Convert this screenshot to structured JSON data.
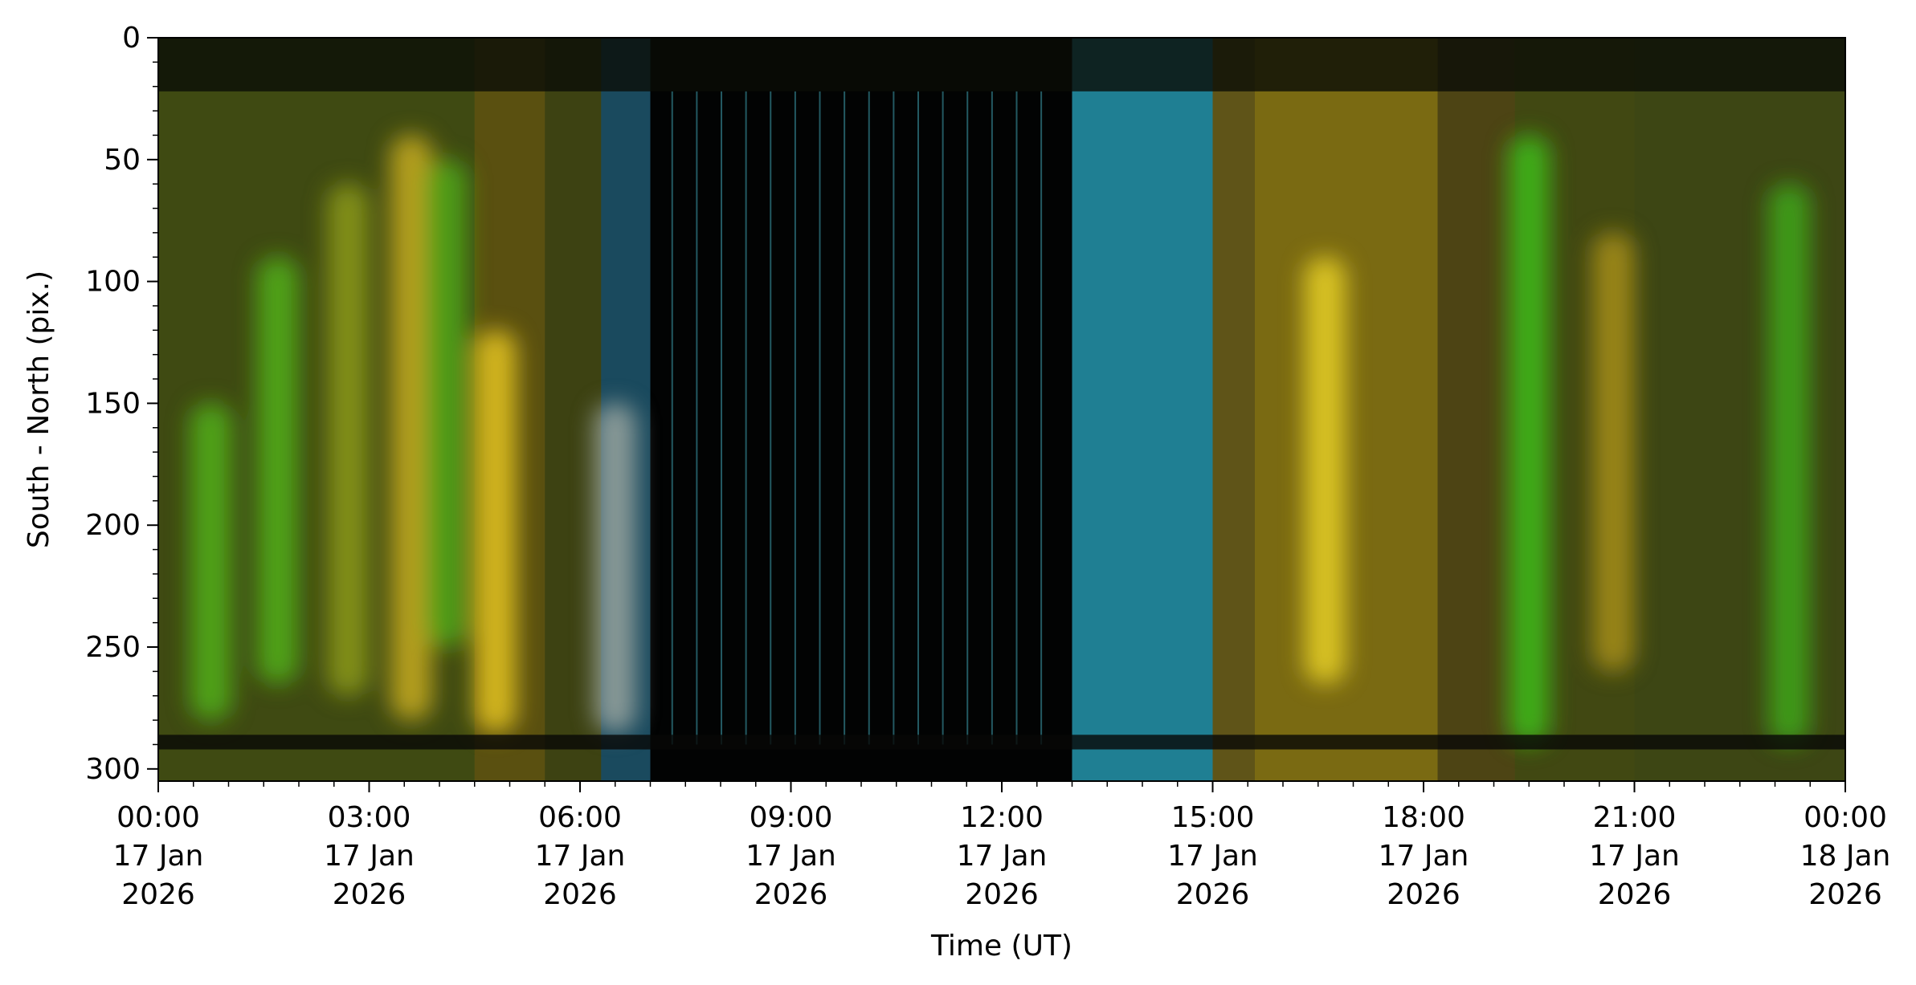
{
  "chart_data": {
    "type": "heatmap",
    "title": "",
    "xlabel": "Time (UT)",
    "ylabel": "South - North (pix.)",
    "x_range_hours": [
      0,
      24
    ],
    "y_range": [
      0,
      305
    ],
    "y_axis_inverted": true,
    "grid": false,
    "legend": "none",
    "x_ticks": [
      {
        "hours": 0,
        "lines": [
          "00:00",
          "17 Jan",
          "2026"
        ]
      },
      {
        "hours": 3,
        "lines": [
          "03:00",
          "17 Jan",
          "2026"
        ]
      },
      {
        "hours": 6,
        "lines": [
          "06:00",
          "17 Jan",
          "2026"
        ]
      },
      {
        "hours": 9,
        "lines": [
          "09:00",
          "17 Jan",
          "2026"
        ]
      },
      {
        "hours": 12,
        "lines": [
          "12:00",
          "17 Jan",
          "2026"
        ]
      },
      {
        "hours": 15,
        "lines": [
          "15:00",
          "17 Jan",
          "2026"
        ]
      },
      {
        "hours": 18,
        "lines": [
          "18:00",
          "17 Jan",
          "2026"
        ]
      },
      {
        "hours": 21,
        "lines": [
          "21:00",
          "17 Jan",
          "2026"
        ]
      },
      {
        "hours": 24,
        "lines": [
          "00:00",
          "18 Jan",
          "2026"
        ]
      }
    ],
    "y_ticks": [
      0,
      50,
      100,
      150,
      200,
      250,
      300
    ],
    "y_minor_step": 10,
    "x_minor_step_hours": 0.5,
    "regions": [
      {
        "start": 0.0,
        "end": 4.5,
        "color": "#3f4a12"
      },
      {
        "start": 4.5,
        "end": 5.5,
        "color": "#5a5010"
      },
      {
        "start": 5.5,
        "end": 6.3,
        "color": "#3d4212"
      },
      {
        "start": 6.3,
        "end": 7.0,
        "color": "#1a4a5e"
      },
      {
        "start": 7.0,
        "end": 13.0,
        "color": "#020303"
      },
      {
        "start": 13.0,
        "end": 15.0,
        "color": "#1f7f93"
      },
      {
        "start": 15.0,
        "end": 15.6,
        "color": "#5f5418"
      },
      {
        "start": 15.6,
        "end": 18.2,
        "color": "#7a6a12"
      },
      {
        "start": 18.2,
        "end": 19.3,
        "color": "#4d4414"
      },
      {
        "start": 19.3,
        "end": 21.0,
        "color": "#414812"
      },
      {
        "start": 21.0,
        "end": 24.0,
        "color": "#3d4614"
      }
    ],
    "auroral_features": [
      {
        "hours": 0.75,
        "y_top": 150,
        "y_bottom": 280,
        "color": "#52b01a"
      },
      {
        "hours": 1.7,
        "y_top": 90,
        "y_bottom": 265,
        "color": "#52b01a"
      },
      {
        "hours": 2.7,
        "y_top": 60,
        "y_bottom": 270,
        "color": "#8c9a18"
      },
      {
        "hours": 3.6,
        "y_top": 40,
        "y_bottom": 280,
        "color": "#c8ad22"
      },
      {
        "hours": 4.1,
        "y_top": 50,
        "y_bottom": 250,
        "color": "#4fa81a"
      },
      {
        "hours": 4.8,
        "y_top": 120,
        "y_bottom": 285,
        "color": "#e6c522"
      },
      {
        "hours": 6.5,
        "y_top": 150,
        "y_bottom": 285,
        "color": "#9aa6a0"
      },
      {
        "hours": 16.6,
        "y_top": 90,
        "y_bottom": 265,
        "color": "#e8d024"
      },
      {
        "hours": 19.5,
        "y_top": 40,
        "y_bottom": 290,
        "color": "#3fbd18"
      },
      {
        "hours": 20.7,
        "y_top": 80,
        "y_bottom": 260,
        "color": "#a88f18"
      },
      {
        "hours": 23.2,
        "y_top": 60,
        "y_bottom": 290,
        "color": "#3fa81a"
      }
    ],
    "dark_bands": [
      {
        "y_start": 0,
        "y_end": 22,
        "color": "#0a0c06"
      },
      {
        "y_start": 286,
        "y_end": 292,
        "color": "#070806"
      }
    ],
    "colors": {
      "background": "#ffffff",
      "axis": "#000000",
      "night_gap": "#020303",
      "cyan_line": "#3fa0b0"
    },
    "night_lines_hours": [
      7.3,
      7.65,
      8.0,
      8.35,
      8.7,
      9.05,
      9.4,
      9.75,
      10.1,
      10.45,
      10.8,
      11.15,
      11.5,
      11.85,
      12.2,
      12.55
    ]
  }
}
